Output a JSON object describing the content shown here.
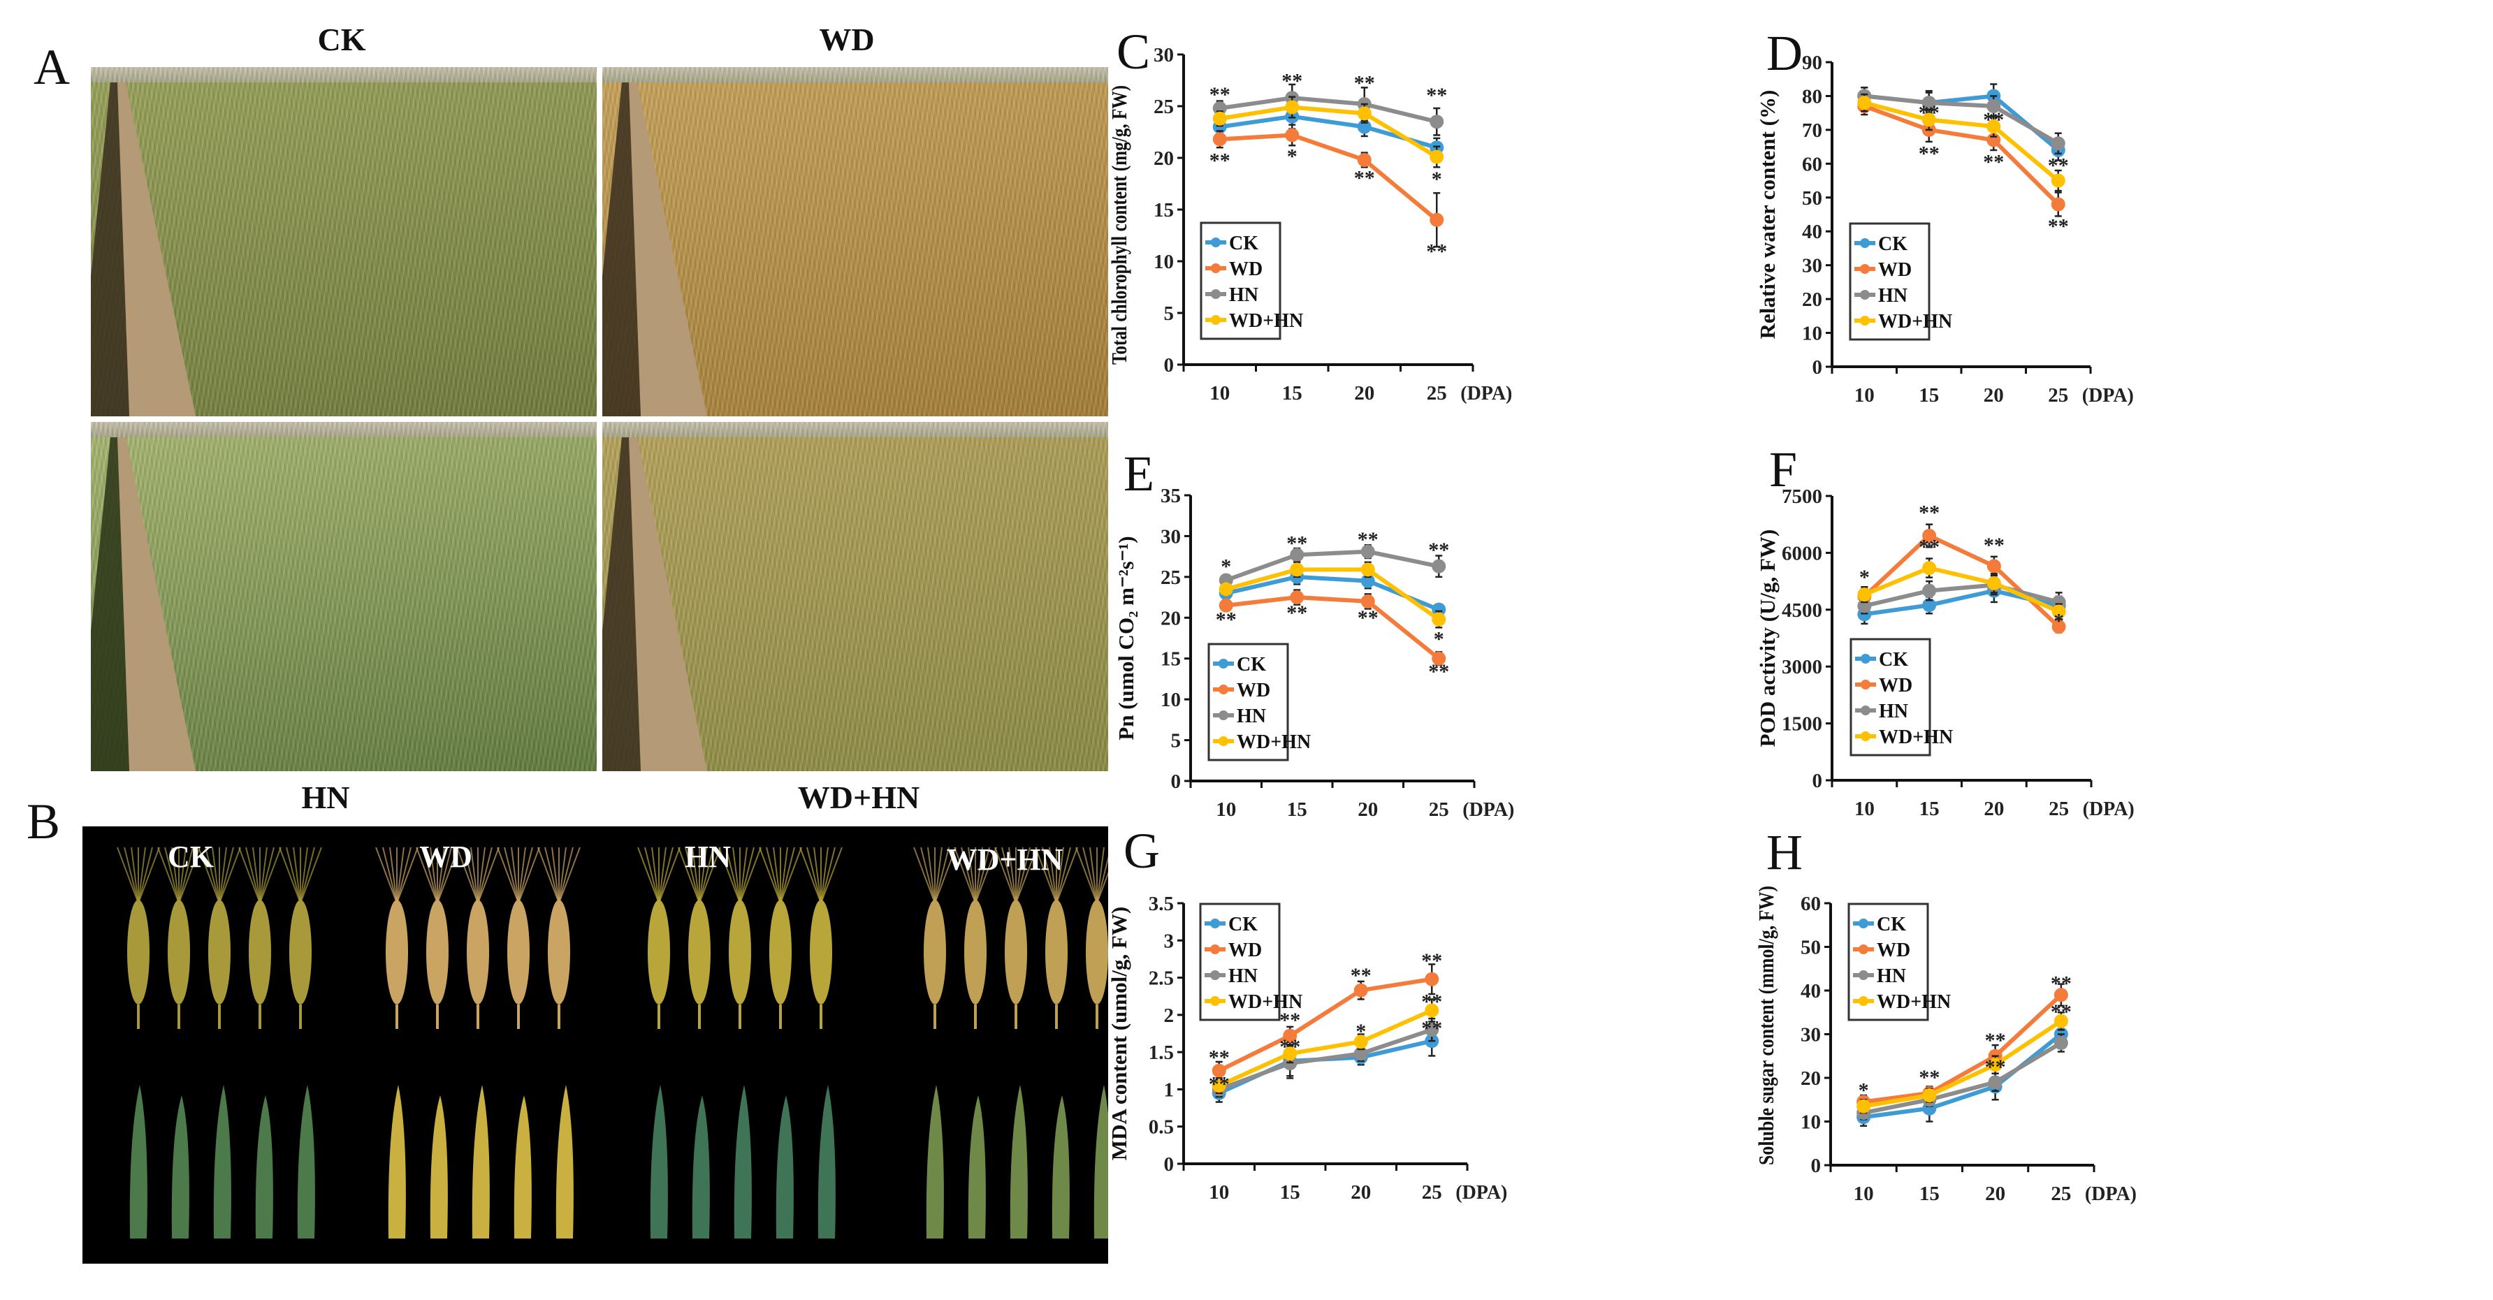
{
  "panel_letters": {
    "A": "A",
    "B": "B",
    "C": "C",
    "D": "D",
    "E": "E",
    "F": "F",
    "G": "G",
    "H": "H"
  },
  "panel_a": {
    "labels": [
      "CK",
      "WD",
      "HN",
      "WD+HN"
    ],
    "photo_colors": [
      {
        "top": "#9aa35a",
        "bottom": "#6f7a3a"
      },
      {
        "top": "#c9a45a",
        "bottom": "#a27d36"
      },
      {
        "top": "#a9b871",
        "bottom": "#5f7a3c"
      },
      {
        "top": "#b8a45c",
        "bottom": "#8a8a42"
      }
    ]
  },
  "panel_b": {
    "labels": [
      "CK",
      "WD",
      "HN",
      "WD+HN"
    ],
    "groups": [
      {
        "ear_color": "#a89a3a",
        "leaf_color": "#4c7a4a"
      },
      {
        "ear_color": "#c9a463",
        "leaf_color": "#c9b040"
      },
      {
        "ear_color": "#b8a63a",
        "leaf_color": "#3f7456"
      },
      {
        "ear_color": "#c0a054",
        "leaf_color": "#6f8a48"
      }
    ]
  },
  "series_colors": {
    "CK": "#3e9bd6",
    "WD": "#f47b3a",
    "HN": "#8c8c8c",
    "WD+HN": "#ffc000"
  },
  "chart_data": [
    {
      "panel": "C",
      "type": "line",
      "title": "",
      "xlabel": "(DPA)",
      "ylabel": "Total chlorophyll content (mg/g, FW)",
      "categories": [
        "10",
        "15",
        "20",
        "25"
      ],
      "ylim": [
        0,
        30
      ],
      "yticks": [
        "0",
        "5",
        "10",
        "15",
        "20",
        "25",
        "30"
      ],
      "legend": "center-left",
      "grid": false,
      "series": [
        {
          "name": "CK",
          "values": [
            23,
            24,
            23,
            21
          ],
          "err": [
            0.8,
            1.2,
            0.9,
            0.9
          ]
        },
        {
          "name": "WD",
          "values": [
            21.8,
            22.2,
            19.8,
            14
          ],
          "err": [
            0.8,
            1,
            0.7,
            2.6
          ]
        },
        {
          "name": "HN",
          "values": [
            24.8,
            25.8,
            25.2,
            23.5
          ],
          "err": [
            0.7,
            1.3,
            1.6,
            1.3
          ]
        },
        {
          "name": "WD+HN",
          "values": [
            23.8,
            24.9,
            24.3,
            20.1
          ],
          "err": [
            0.7,
            1,
            0.9,
            1
          ]
        }
      ],
      "annotations": [
        [
          0,
          26.3,
          "**"
        ],
        [
          0,
          19.9,
          "**"
        ],
        [
          1,
          27.6,
          "**"
        ],
        [
          1,
          20.3,
          "*"
        ],
        [
          2,
          27.4,
          "**"
        ],
        [
          2,
          18.2,
          "**"
        ],
        [
          3,
          26.2,
          "**"
        ],
        [
          3,
          18.1,
          "*"
        ],
        [
          3,
          11.1,
          "**"
        ]
      ]
    },
    {
      "panel": "D",
      "type": "line",
      "title": "",
      "xlabel": "(DPA)",
      "ylabel": "Relative water content (%)",
      "categories": [
        "10",
        "15",
        "20",
        "25"
      ],
      "ylim": [
        0,
        90
      ],
      "yticks": [
        "0",
        "10",
        "20",
        "30",
        "40",
        "50",
        "60",
        "70",
        "80",
        "90"
      ],
      "legend": "center-left",
      "grid": false,
      "series": [
        {
          "name": "CK",
          "values": [
            80,
            78,
            80,
            64
          ],
          "err": [
            2.5,
            3.5,
            3.5,
            3
          ]
        },
        {
          "name": "WD",
          "values": [
            77,
            70,
            67,
            48
          ],
          "err": [
            2.5,
            3.5,
            3,
            3.5
          ]
        },
        {
          "name": "HN",
          "values": [
            80,
            78,
            77,
            66
          ],
          "err": [
            2.5,
            3,
            3,
            3
          ]
        },
        {
          "name": "WD+HN",
          "values": [
            78,
            73,
            71,
            55
          ],
          "err": [
            2.5,
            3,
            3,
            3
          ]
        }
      ],
      "annotations": [
        [
          1,
          75.5,
          "**"
        ],
        [
          1,
          63.5,
          "**"
        ],
        [
          2,
          73.5,
          "**"
        ],
        [
          2,
          61,
          "**"
        ],
        [
          3,
          60,
          "**"
        ],
        [
          3,
          42,
          "**"
        ]
      ]
    },
    {
      "panel": "E",
      "type": "line",
      "title": "",
      "xlabel": "(DPA)",
      "ylabel": "Pn (umol CO₂ m⁻²s⁻¹)",
      "categories": [
        "10",
        "15",
        "20",
        "25"
      ],
      "ylim": [
        0,
        35
      ],
      "yticks": [
        "0",
        "5",
        "10",
        "15",
        "20",
        "25",
        "30",
        "35"
      ],
      "legend": "lower-left",
      "grid": false,
      "series": [
        {
          "name": "CK",
          "values": [
            23,
            25,
            24.5,
            21
          ],
          "err": [
            0.7,
            0.9,
            0.9,
            0.6
          ]
        },
        {
          "name": "WD",
          "values": [
            21.5,
            22.5,
            22,
            15
          ],
          "err": [
            0.6,
            0.9,
            0.9,
            0.8
          ]
        },
        {
          "name": "HN",
          "values": [
            24.6,
            27.7,
            28.1,
            26.3
          ],
          "err": [
            0.6,
            0.8,
            0.8,
            1.3
          ]
        },
        {
          "name": "WD+HN",
          "values": [
            23.5,
            25.9,
            25.9,
            19.8
          ],
          "err": [
            0.7,
            0.9,
            0.9,
            1
          ]
        }
      ],
      "annotations": [
        [
          0,
          26.5,
          "*"
        ],
        [
          0,
          20,
          "**"
        ],
        [
          1,
          29.3,
          "**"
        ],
        [
          1,
          20.8,
          "**"
        ],
        [
          2,
          29.8,
          "**"
        ],
        [
          2,
          20.2,
          "**"
        ],
        [
          3,
          28.5,
          "**"
        ],
        [
          3,
          17.6,
          "*"
        ],
        [
          3,
          13.6,
          "**"
        ]
      ]
    },
    {
      "panel": "F",
      "type": "line",
      "title": "",
      "xlabel": "(DPA)",
      "ylabel": "POD activity (U/g, FW)",
      "categories": [
        "10",
        "15",
        "20",
        "25"
      ],
      "ylim": [
        0,
        7500
      ],
      "yticks": [
        "0",
        "1500",
        "3000",
        "4500",
        "6000",
        "7500"
      ],
      "legend": "lower-left",
      "grid": false,
      "series": [
        {
          "name": "CK",
          "values": [
            4380,
            4620,
            5000,
            4600
          ],
          "err": [
            250,
            220,
            300,
            250
          ]
        },
        {
          "name": "WD",
          "values": [
            4850,
            6450,
            5650,
            4050
          ],
          "err": [
            200,
            300,
            250,
            150
          ]
        },
        {
          "name": "HN",
          "values": [
            4600,
            5000,
            5150,
            4700
          ],
          "err": [
            200,
            250,
            250,
            250
          ]
        },
        {
          "name": "WD+HN",
          "values": [
            4900,
            5600,
            5200,
            4450
          ],
          "err": [
            200,
            250,
            250,
            200
          ]
        }
      ],
      "annotations": [
        [
          0,
          5400,
          "*"
        ],
        [
          1,
          7100,
          "**"
        ],
        [
          1,
          6200,
          "**"
        ],
        [
          2,
          6250,
          "**"
        ],
        [
          3,
          4250,
          "*"
        ]
      ]
    },
    {
      "panel": "G",
      "type": "line",
      "title": "",
      "xlabel": "(DPA)",
      "ylabel": "MDA content (umol/g, FW)",
      "categories": [
        "10",
        "15",
        "20",
        "25"
      ],
      "ylim": [
        0,
        3.5
      ],
      "yticks": [
        "0",
        "0.5",
        "1",
        "1.5",
        "2",
        "2.5",
        "3",
        "3.5"
      ],
      "legend": "top-left",
      "grid": false,
      "series": [
        {
          "name": "CK",
          "values": [
            0.95,
            1.38,
            1.43,
            1.65
          ],
          "err": [
            0.12,
            0.2,
            0.1,
            0.2
          ]
        },
        {
          "name": "WD",
          "values": [
            1.25,
            1.72,
            2.33,
            2.48
          ],
          "err": [
            0.12,
            0.12,
            0.12,
            0.2
          ]
        },
        {
          "name": "HN",
          "values": [
            1.0,
            1.35,
            1.48,
            1.8
          ],
          "err": [
            0.1,
            0.2,
            0.1,
            0.15
          ]
        },
        {
          "name": "WD+HN",
          "values": [
            1.05,
            1.48,
            1.64,
            2.06
          ],
          "err": [
            0.1,
            0.12,
            0.1,
            0.15
          ]
        }
      ],
      "annotations": [
        [
          0,
          1.45,
          "**"
        ],
        [
          0,
          1.15,
          "**"
        ],
        [
          1,
          1.95,
          "**"
        ],
        [
          1,
          1.6,
          "**"
        ],
        [
          2,
          2.55,
          "**"
        ],
        [
          2,
          1.8,
          "*"
        ],
        [
          3,
          2.75,
          "**"
        ],
        [
          3,
          2.2,
          "**"
        ],
        [
          3,
          1.9,
          "**"
        ]
      ]
    },
    {
      "panel": "H",
      "type": "line",
      "title": "",
      "xlabel": "(DPA)",
      "ylabel": "Soluble sugar content (mmol/g, FW)",
      "categories": [
        "10",
        "15",
        "20",
        "25"
      ],
      "ylim": [
        0,
        60
      ],
      "yticks": [
        "0",
        "10",
        "20",
        "30",
        "40",
        "50",
        "60"
      ],
      "legend": "top-left",
      "grid": false,
      "series": [
        {
          "name": "CK",
          "values": [
            11,
            13,
            18,
            30
          ],
          "err": [
            2,
            3,
            3,
            2
          ]
        },
        {
          "name": "WD",
          "values": [
            14.5,
            16.5,
            25,
            39
          ],
          "err": [
            1.5,
            1.5,
            2.5,
            2.5
          ]
        },
        {
          "name": "HN",
          "values": [
            12,
            15,
            19,
            28
          ],
          "err": [
            1.5,
            1.5,
            2,
            2
          ]
        },
        {
          "name": "WD+HN",
          "values": [
            13.5,
            16,
            23,
            33
          ],
          "err": [
            1.5,
            1.5,
            2,
            2
          ]
        }
      ],
      "annotations": [
        [
          0,
          17.5,
          "*"
        ],
        [
          1,
          20.5,
          "**"
        ],
        [
          2,
          29,
          "**"
        ],
        [
          2,
          24,
          "**"
        ],
        [
          3,
          42,
          "**"
        ],
        [
          3,
          35.5,
          "**"
        ]
      ]
    }
  ]
}
